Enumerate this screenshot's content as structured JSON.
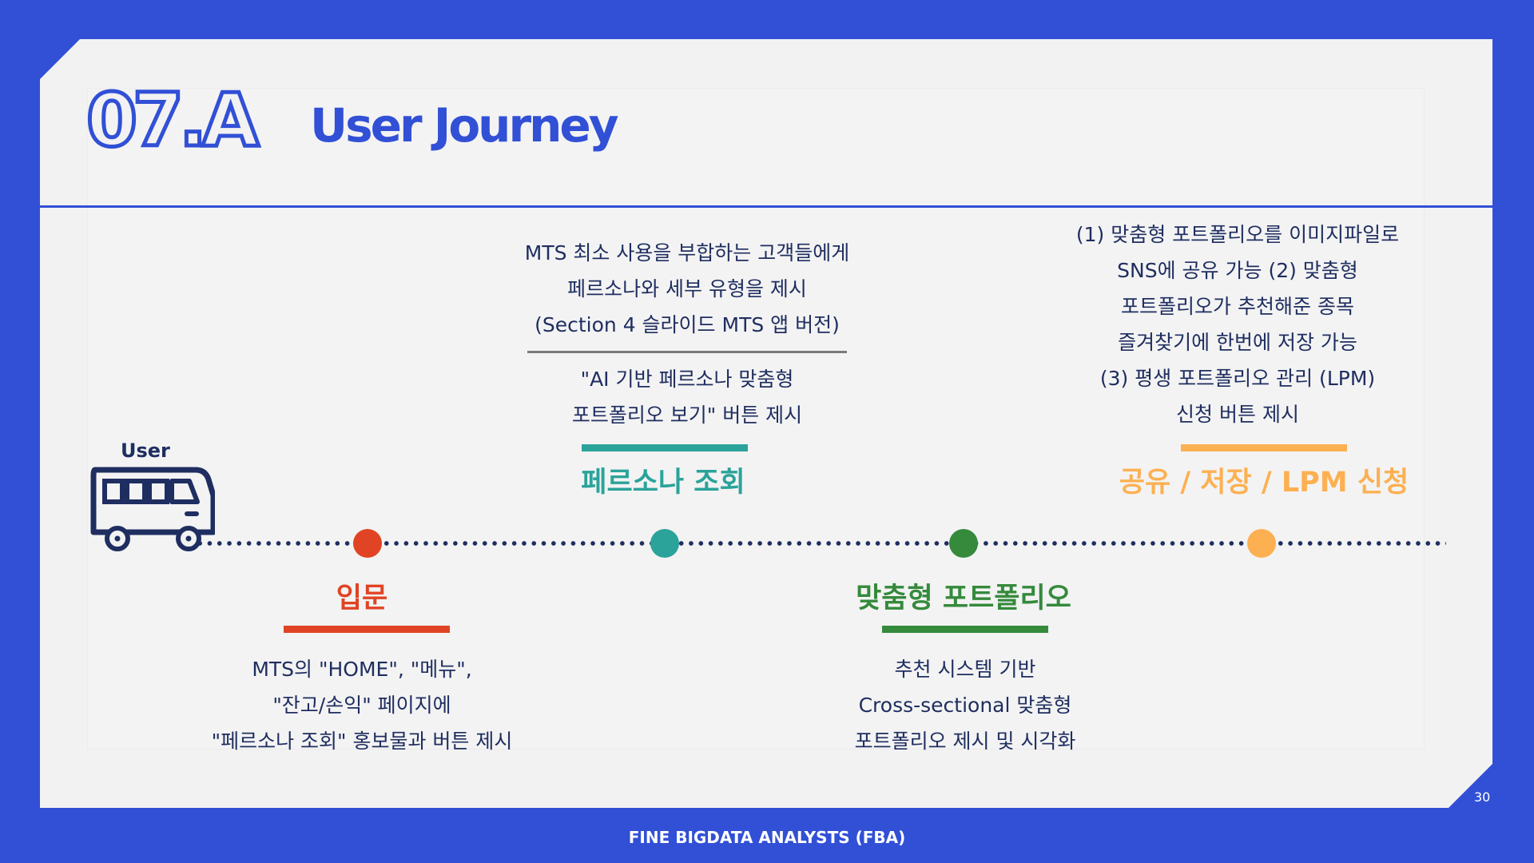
{
  "header": {
    "section_number": "07.A",
    "title": "User Journey"
  },
  "journey": {
    "user_label": "User",
    "stages": [
      {
        "name": "입문",
        "color": "#e04424",
        "description": [
          "MTS의 \"HOME\", \"메뉴\",",
          "\"잔고/손익\" 페이지에",
          "\"페르소나 조회\" 홍보물과 버튼 제시"
        ]
      },
      {
        "name": "페르소나 조회",
        "color": "#2ba39a",
        "description_top": [
          "MTS 최소 사용을 부합하는 고객들에게",
          "페르소나와 세부 유형을 제시",
          "(Section 4 슬라이드 MTS 앱 버전)"
        ],
        "description_bottom": [
          "\"AI 기반 페르소나 맞춤형",
          "포트폴리오 보기\" 버튼 제시"
        ]
      },
      {
        "name": "맞춤형 포트폴리오",
        "color": "#358a3c",
        "description": [
          "추천 시스템 기반",
          "Cross-sectional 맞춤형",
          "포트폴리오 제시 및 시각화"
        ]
      },
      {
        "name": "공유 / 저장 / LPM 신청",
        "color": "#fdb052",
        "description": [
          "(1) 맞춤형 포트폴리오를 이미지파일로",
          "SNS에 공유 가능 (2) 맞춤형",
          "포트폴리오가 추천해준 종목",
          "즐겨찾기에 한번에 저장 가능",
          "(3) 평생 포트폴리오 관리 (LPM)",
          "신청 버튼 제시"
        ]
      }
    ]
  },
  "footer": {
    "text": "FINE BIGDATA ANALYSTS (FBA)",
    "page_number": "30"
  },
  "colors": {
    "brand_blue": "#3150d6",
    "navy": "#1f2e60",
    "background": "#f2f2f2"
  }
}
